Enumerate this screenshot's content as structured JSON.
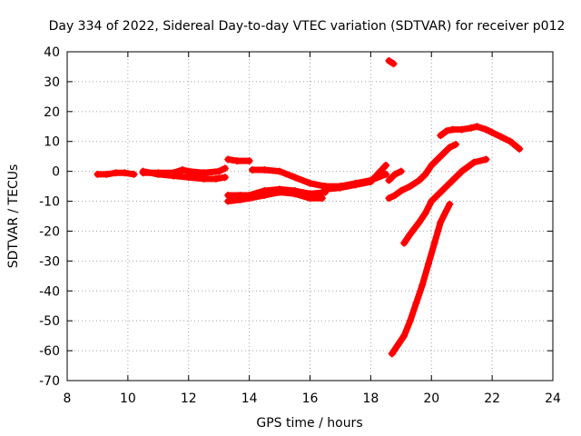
{
  "chart_data": {
    "type": "scatter",
    "title": "Day 334 of 2022, Sidereal Day-to-day VTEC variation (SDTVAR) for receiver p012",
    "xlabel": "GPS time / hours",
    "ylabel": "SDTVAR / TECUs",
    "xlim": [
      8,
      24
    ],
    "ylim": [
      -70,
      40
    ],
    "xticks": [
      8,
      10,
      12,
      14,
      16,
      18,
      20,
      22,
      24
    ],
    "yticks": [
      -70,
      -60,
      -50,
      -40,
      -30,
      -20,
      -10,
      0,
      10,
      20,
      30,
      40
    ],
    "grid": true,
    "legend": "none",
    "marker_color": "#ff0000",
    "series": [
      {
        "x": [
          9.0,
          9.3,
          9.6,
          9.9,
          10.2
        ],
        "y": [
          -1,
          -1,
          -0.5,
          -0.5,
          -1
        ]
      },
      {
        "x": [
          10.5,
          11.0,
          11.5,
          12.0,
          12.5,
          12.9,
          13.2
        ],
        "y": [
          0,
          -1,
          -1.5,
          -2,
          -2.5,
          -2.5,
          -2
        ]
      },
      {
        "x": [
          10.5,
          11.0,
          11.5,
          11.8,
          12.0,
          12.5,
          13.0,
          13.2
        ],
        "y": [
          -0.5,
          -0.5,
          -0.5,
          0.5,
          0,
          -0.5,
          0,
          1
        ]
      },
      {
        "x": [
          13.3,
          13.6,
          14.0
        ],
        "y": [
          4,
          3.5,
          3.5
        ]
      },
      {
        "x": [
          14.1,
          14.5,
          15.0,
          15.5,
          16.0,
          16.5,
          17.0,
          17.5,
          18.0,
          18.5
        ],
        "y": [
          0.5,
          0.5,
          0,
          -2,
          -4,
          -5,
          -5,
          -4,
          -3,
          -1
        ]
      },
      {
        "x": [
          13.3,
          13.7,
          14.0,
          14.5,
          15.0,
          15.5,
          16.0,
          16.4
        ],
        "y": [
          -10,
          -9.5,
          -9,
          -8,
          -7,
          -7.5,
          -9,
          -9
        ]
      },
      {
        "x": [
          13.3,
          13.7,
          14.0,
          14.5,
          15.0,
          15.5,
          16.0,
          16.5
        ],
        "y": [
          -8,
          -8,
          -8,
          -6.5,
          -6,
          -6.5,
          -7.5,
          -7
        ]
      },
      {
        "x": [
          16.5,
          17.0,
          17.5,
          18.0,
          18.5
        ],
        "y": [
          -6,
          -5.5,
          -4.5,
          -3.5,
          2
        ]
      },
      {
        "x": [
          18.6,
          18.8,
          19.0,
          19.3,
          19.6,
          19.8,
          20.0,
          20.3,
          20.6,
          20.8
        ],
        "y": [
          -9,
          -8,
          -6.5,
          -5,
          -3,
          -1,
          2,
          5,
          8,
          9
        ]
      },
      {
        "x": [
          20.3,
          20.5,
          20.7,
          21.0,
          21.3,
          21.5,
          21.8,
          22.0,
          22.3,
          22.6,
          22.9
        ],
        "y": [
          12,
          13.5,
          14,
          14,
          14.5,
          15,
          14,
          13,
          11.5,
          10,
          7.5
        ]
      },
      {
        "x": [
          18.7,
          18.9,
          19.1,
          19.3,
          19.5,
          19.7,
          19.9,
          20.1,
          20.3,
          20.6
        ],
        "y": [
          -61,
          -58,
          -55,
          -50,
          -44,
          -38,
          -31,
          -24,
          -17,
          -11
        ]
      },
      {
        "x": [
          19.1,
          19.3,
          19.6,
          19.8,
          20.0,
          20.3,
          20.6,
          21.0,
          21.4,
          21.8
        ],
        "y": [
          -24,
          -21,
          -17,
          -14,
          -10,
          -7,
          -4,
          0,
          3,
          4
        ]
      },
      {
        "x": [
          18.6,
          18.75
        ],
        "y": [
          37,
          36
        ]
      },
      {
        "x": [
          18.6,
          18.8,
          19.0
        ],
        "y": [
          -3,
          -1,
          0
        ]
      }
    ]
  }
}
